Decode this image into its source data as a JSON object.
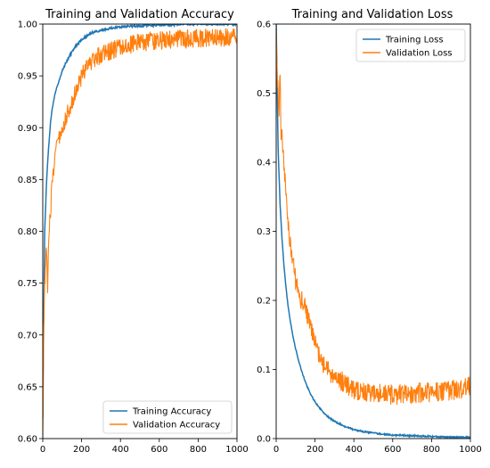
{
  "colors": {
    "training": "#1f77b4",
    "validation": "#ff7f0e"
  },
  "chart_data": [
    {
      "type": "line",
      "title": "Training and Validation Accuracy",
      "xlabel": "",
      "ylabel": "",
      "xlim": [
        0,
        1000
      ],
      "ylim": [
        0.6,
        1.0
      ],
      "xticks": [
        0,
        200,
        400,
        600,
        800,
        1000
      ],
      "xtick_labels": [
        "0",
        "200",
        "400",
        "600",
        "800",
        "1000"
      ],
      "yticks": [
        0.6,
        0.65,
        0.7,
        0.75,
        0.8,
        0.85,
        0.9,
        0.95,
        1.0
      ],
      "ytick_labels": [
        "0.60",
        "0.65",
        "0.70",
        "0.75",
        "0.80",
        "0.85",
        "0.90",
        "0.95",
        "1.00"
      ],
      "grid": false,
      "legend": "lower-right",
      "series": [
        {
          "name": "Training Accuracy",
          "x": [
            0,
            5,
            10,
            20,
            30,
            40,
            50,
            60,
            70,
            80,
            90,
            100,
            120,
            140,
            160,
            180,
            200,
            230,
            260,
            300,
            350,
            400,
            450,
            500,
            550,
            600,
            650,
            700,
            800,
            900,
            1000
          ],
          "y": [
            0.62,
            0.72,
            0.8,
            0.85,
            0.88,
            0.905,
            0.92,
            0.93,
            0.937,
            0.943,
            0.949,
            0.955,
            0.963,
            0.97,
            0.976,
            0.981,
            0.985,
            0.989,
            0.992,
            0.994,
            0.996,
            0.997,
            0.998,
            0.998,
            0.999,
            0.999,
            0.999,
            1.0,
            1.0,
            1.0,
            1.0
          ]
        },
        {
          "name": "Validation Accuracy",
          "x": [
            0,
            5,
            10,
            15,
            20,
            25,
            30,
            40,
            50,
            60,
            70,
            80,
            90,
            100,
            110,
            120,
            130,
            140,
            150,
            160,
            170,
            180,
            190,
            200,
            220,
            240,
            260,
            280,
            300,
            330,
            360,
            400,
            450,
            500,
            550,
            600,
            650,
            700,
            750,
            800,
            850,
            900,
            950,
            1000
          ],
          "y": [
            0.6,
            0.7,
            0.75,
            0.77,
            0.78,
            0.745,
            0.79,
            0.82,
            0.85,
            0.87,
            0.88,
            0.89,
            0.895,
            0.9,
            0.905,
            0.91,
            0.915,
            0.92,
            0.925,
            0.93,
            0.935,
            0.94,
            0.945,
            0.95,
            0.958,
            0.962,
            0.965,
            0.968,
            0.97,
            0.973,
            0.975,
            0.978,
            0.98,
            0.982,
            0.983,
            0.984,
            0.985,
            0.985,
            0.986,
            0.986,
            0.987,
            0.987,
            0.987,
            0.987
          ]
        }
      ]
    },
    {
      "type": "line",
      "title": "Training and Validation Loss",
      "xlabel": "",
      "ylabel": "",
      "xlim": [
        0,
        1000
      ],
      "ylim": [
        0.0,
        0.6
      ],
      "xticks": [
        0,
        200,
        400,
        600,
        800,
        1000
      ],
      "xtick_labels": [
        "0",
        "200",
        "400",
        "600",
        "800",
        "1000"
      ],
      "yticks": [
        0.0,
        0.1,
        0.2,
        0.3,
        0.4,
        0.5,
        0.6
      ],
      "ytick_labels": [
        "0.0",
        "0.1",
        "0.2",
        "0.3",
        "0.4",
        "0.5",
        "0.6"
      ],
      "grid": false,
      "legend": "upper-right",
      "series": [
        {
          "name": "Training Loss",
          "x": [
            0,
            10,
            20,
            30,
            40,
            50,
            60,
            70,
            80,
            90,
            100,
            120,
            140,
            160,
            180,
            200,
            230,
            260,
            300,
            350,
            400,
            450,
            500,
            600,
            700,
            800,
            900,
            1000
          ],
          "y": [
            0.6,
            0.42,
            0.34,
            0.29,
            0.25,
            0.22,
            0.195,
            0.175,
            0.158,
            0.143,
            0.13,
            0.108,
            0.09,
            0.075,
            0.063,
            0.053,
            0.042,
            0.033,
            0.025,
            0.018,
            0.013,
            0.01,
            0.008,
            0.005,
            0.004,
            0.003,
            0.002,
            0.002
          ]
        },
        {
          "name": "Validation Loss",
          "x": [
            0,
            5,
            10,
            15,
            20,
            25,
            30,
            35,
            40,
            50,
            60,
            70,
            80,
            90,
            100,
            110,
            120,
            130,
            140,
            150,
            160,
            170,
            180,
            190,
            200,
            220,
            240,
            260,
            280,
            300,
            330,
            360,
            400,
            450,
            500,
            550,
            600,
            650,
            700,
            750,
            800,
            850,
            900,
            950,
            1000
          ],
          "y": [
            0.6,
            0.52,
            0.5,
            0.47,
            0.53,
            0.44,
            0.45,
            0.42,
            0.4,
            0.36,
            0.32,
            0.29,
            0.27,
            0.25,
            0.23,
            0.22,
            0.21,
            0.2,
            0.195,
            0.19,
            0.18,
            0.17,
            0.16,
            0.15,
            0.14,
            0.12,
            0.11,
            0.1,
            0.095,
            0.09,
            0.085,
            0.078,
            0.072,
            0.068,
            0.066,
            0.065,
            0.064,
            0.064,
            0.065,
            0.066,
            0.067,
            0.068,
            0.07,
            0.072,
            0.075
          ]
        }
      ]
    }
  ]
}
